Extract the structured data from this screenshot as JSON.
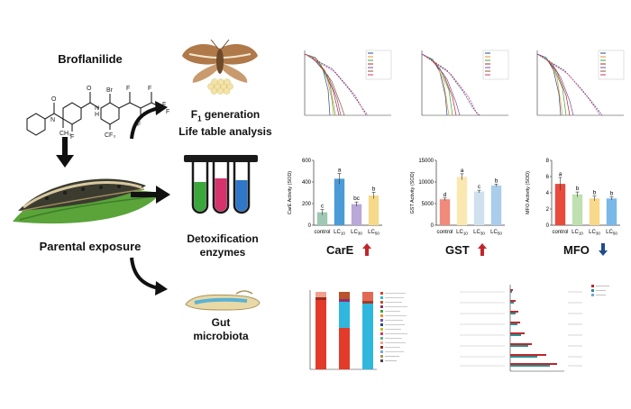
{
  "left": {
    "compound": "Broflanilide",
    "stage": "Parental exposure"
  },
  "middle": {
    "life_table_line1_base": "F",
    "life_table_line1_sub": "1",
    "life_table_line1_rest": " generation",
    "life_table_line2": "Life table analysis",
    "detox_line1": "Detoxification",
    "detox_line2": "enzymes",
    "gut_line1": "Gut",
    "gut_line2": "microbiota"
  },
  "enzymes": {
    "care_label": "CarE",
    "gst_label": "GST",
    "mfo_label": "MFO",
    "care_color": "#c0262b",
    "gst_color": "#c0262b",
    "mfo_color": "#1f4d8c"
  },
  "chart_data": [
    {
      "type": "bar",
      "ylabel": "CarE Activity (SOD)",
      "categories": [
        "control",
        "LC10",
        "LC30",
        "LC50"
      ],
      "values": [
        120,
        430,
        195,
        275
      ],
      "errors": [
        25,
        50,
        20,
        30
      ],
      "letters": [
        "c",
        "a",
        "bc",
        "b"
      ],
      "ylim": [
        0,
        600
      ],
      "yticks": [
        0,
        200,
        400,
        600
      ],
      "colors": [
        "#9ec9b4",
        "#4a9bd6",
        "#b9a8d8",
        "#f6d98a"
      ]
    },
    {
      "type": "bar",
      "ylabel": "GST Activity (SOD)",
      "categories": [
        "control",
        "LC10",
        "LC30",
        "LC50"
      ],
      "values": [
        6000,
        11200,
        7800,
        9200
      ],
      "errors": [
        300,
        700,
        300,
        300
      ],
      "letters": [
        "d",
        "a",
        "c",
        "b"
      ],
      "ylim": [
        0,
        15000
      ],
      "yticks": [
        0,
        5000,
        10000,
        15000
      ],
      "colors": [
        "#f08a7a",
        "#fbe7b0",
        "#cfe0ef",
        "#a9cdea"
      ]
    },
    {
      "type": "bar",
      "ylabel": "MFO Activity (SOD)",
      "categories": [
        "control",
        "LC10",
        "LC30",
        "LC50"
      ],
      "values": [
        5.1,
        3.8,
        3.3,
        3.3
      ],
      "errors": [
        0.8,
        0.3,
        0.3,
        0.2
      ],
      "letters": [
        "a",
        "b",
        "b",
        "b"
      ],
      "ylim": [
        0,
        8
      ],
      "yticks": [
        0,
        2,
        4,
        6,
        8
      ],
      "colors": [
        "#e84a3c",
        "#bfe0b0",
        "#f6d98a",
        "#7ab8e8"
      ]
    }
  ]
}
